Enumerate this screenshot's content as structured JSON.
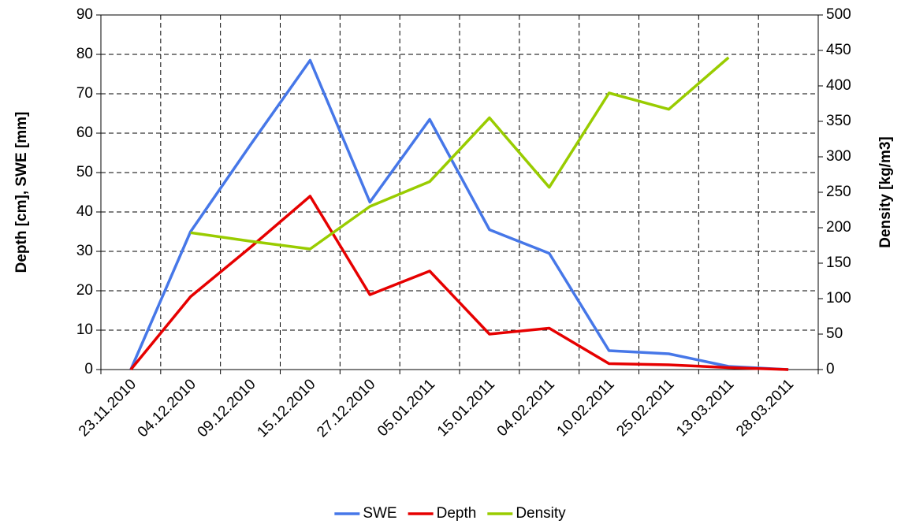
{
  "chart_data": {
    "type": "line",
    "categories": [
      "23.11.2010",
      "04.12.2010",
      "09.12.2010",
      "15.12.2010",
      "27.12.2010",
      "05.01.2011",
      "15.01.2011",
      "04.02.2011",
      "10.02.2011",
      "25.02.2011",
      "13.03.2011",
      "28.03.2011"
    ],
    "series": [
      {
        "name": "SWE",
        "color": "#4677e8",
        "values": [
          0,
          35,
          57,
          78.5,
          42.5,
          63.5,
          35.5,
          29.5,
          4.8,
          4,
          0.8,
          0
        ]
      },
      {
        "name": "Depth",
        "color": "#e60000",
        "values": [
          0,
          18.5,
          31,
          44,
          19,
          25,
          9,
          10.5,
          1.5,
          1.2,
          0.5,
          0
        ]
      },
      {
        "name": "Density",
        "color": "#99cc00",
        "axis": "y2",
        "values": [
          null,
          193,
          181,
          170,
          230,
          265,
          355,
          257,
          390,
          367,
          440,
          null
        ]
      }
    ],
    "ylabel": "Depth [cm], SWE [mm]",
    "y2label": "Density [kg/m3]",
    "ylim": [
      0,
      90
    ],
    "yticks": [
      0,
      10,
      20,
      30,
      40,
      50,
      60,
      70,
      80,
      90
    ],
    "y2lim": [
      0,
      500
    ],
    "y2ticks": [
      0,
      50,
      100,
      150,
      200,
      250,
      300,
      350,
      400,
      450,
      500
    ],
    "grid": true,
    "legend": "bottom"
  }
}
